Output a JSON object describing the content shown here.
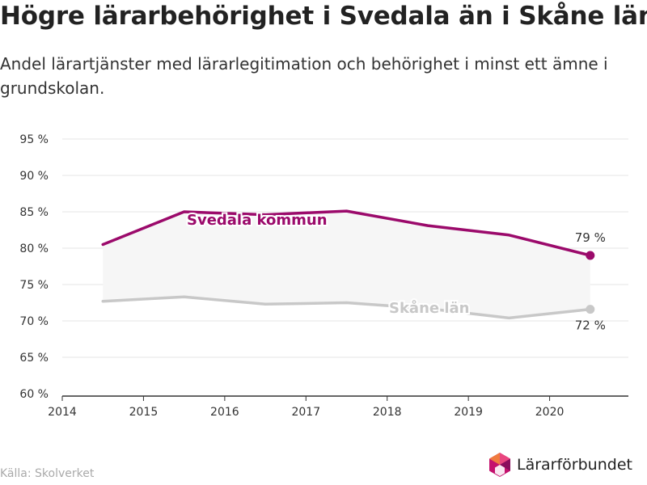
{
  "title": "Högre lärarbehörighet i Svedala än i Skåne län",
  "subtitle": "Andel lärartjänster med lärarlegitimation och behörighet i minst ett ämne i grundskolan.",
  "source": "Källa: Skolverket",
  "logo_text": "Lärarförbundet",
  "colors": {
    "svedala": "#9b0a6b",
    "skane": "#c8c8c8",
    "area": "#f6f6f6",
    "grid": "#e4e4e4",
    "axis": "#333333"
  },
  "chart_data": {
    "type": "line",
    "title": "Högre lärarbehörighet i Svedala än i Skåne län",
    "subtitle": "Andel lärartjänster med lärarlegitimation och behörighet i minst ett ämne i grundskolan.",
    "xlim": [
      2014,
      2020.97
    ],
    "ylim": [
      60,
      95
    ],
    "xticks": [
      2014,
      2015,
      2016,
      2017,
      2018,
      2019,
      2020
    ],
    "xtick_labels": [
      "2014",
      "2015",
      "2016",
      "2017",
      "2018",
      "2019",
      "2020"
    ],
    "yticks": [
      60,
      65,
      70,
      75,
      80,
      85,
      90,
      95
    ],
    "ytick_labels": [
      "60 %",
      "65 %",
      "70 %",
      "75 %",
      "80 %",
      "85 %",
      "90 %",
      "95 %"
    ],
    "grid": true,
    "legend": "none",
    "x": [
      2014.5,
      2015.5,
      2016.5,
      2017.5,
      2018.5,
      2019.5,
      2020.5
    ],
    "series": [
      {
        "name": "Svedala kommun",
        "values": [
          80.5,
          85.0,
          84.6,
          85.1,
          83.1,
          81.8,
          79.0
        ],
        "end_label": "79 %"
      },
      {
        "name": "Skåne län",
        "values": [
          72.7,
          73.3,
          72.3,
          72.5,
          71.7,
          70.4,
          71.6
        ],
        "end_label": "72 %"
      }
    ]
  }
}
